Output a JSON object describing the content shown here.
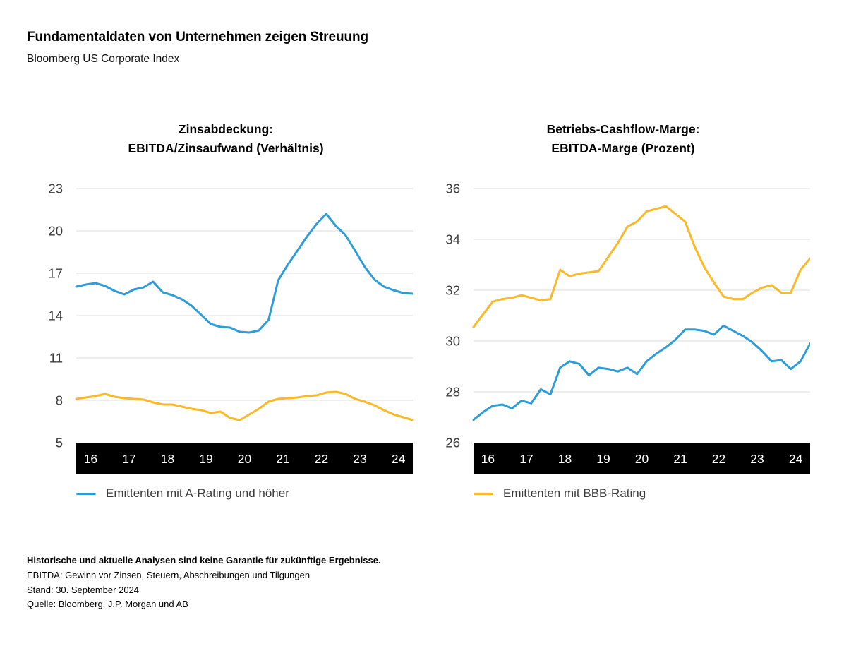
{
  "header": {
    "title": "Fundamentaldaten von Unternehmen zeigen Streuung",
    "subtitle": "Bloomberg US Corporate Index"
  },
  "colors": {
    "a_rating": "#2E9CD6",
    "bbb_rating": "#FCB827",
    "gridline": "#E4E4E4",
    "label_text": "#3C3C3C",
    "axis_band": "#000000",
    "axis_band_text": "#FFFFFF"
  },
  "chart_data": [
    {
      "type": "line",
      "title_line1": "Zinsabdeckung:",
      "title_line2": "EBITDA/Zinsaufwand (Verhältnis)",
      "ylim": [
        5,
        23
      ],
      "y_ticks": [
        23,
        20,
        17,
        14,
        11,
        8,
        5
      ],
      "x_ticks": [
        "16",
        "17",
        "18",
        "19",
        "20",
        "21",
        "22",
        "23",
        "24"
      ],
      "grid": "horizontal",
      "legend": "Emittenten mit A-Rating und höher",
      "legend_color": "#2E9CD6",
      "legend_position": "bottom-left",
      "series": [
        {
          "id": "bbb-rating",
          "name": "Emittenten mit BBB-Rating",
          "color": "#FCB827",
          "values": [
            8.1,
            8.2,
            8.3,
            8.45,
            8.25,
            8.15,
            8.1,
            8.05,
            7.85,
            7.7,
            7.7,
            7.55,
            7.4,
            7.3,
            7.1,
            7.2,
            6.75,
            6.6,
            7.0,
            7.4,
            7.9,
            8.1,
            8.15,
            8.2,
            8.3,
            8.35,
            8.55,
            8.6,
            8.45,
            8.1,
            7.9,
            7.65,
            7.3,
            7.0,
            6.8,
            6.6
          ]
        },
        {
          "id": "a-rating",
          "name": "Emittenten mit A-Rating und höher",
          "color": "#2E9CD6",
          "values": [
            16.05,
            16.2,
            16.3,
            16.1,
            15.75,
            15.5,
            15.85,
            16.0,
            16.4,
            15.65,
            15.45,
            15.15,
            14.7,
            14.05,
            13.4,
            13.2,
            13.15,
            12.85,
            12.8,
            12.95,
            13.7,
            16.5,
            17.6,
            18.6,
            19.6,
            20.5,
            21.2,
            20.35,
            19.7,
            18.6,
            17.45,
            16.55,
            16.05,
            15.8,
            15.6,
            15.55
          ]
        }
      ]
    },
    {
      "type": "line",
      "title_line1": "Betriebs-Cashflow-Marge:",
      "title_line2": "EBITDA-Marge (Prozent)",
      "ylim": [
        26,
        36
      ],
      "y_ticks": [
        36,
        34,
        32,
        30,
        28,
        26
      ],
      "x_ticks": [
        "16",
        "17",
        "18",
        "19",
        "20",
        "21",
        "22",
        "23",
        "24"
      ],
      "grid": "horizontal",
      "legend": "Emittenten mit BBB-Rating",
      "legend_color": "#FCB827",
      "legend_position": "bottom-left",
      "series": [
        {
          "id": "bbb-rating",
          "name": "Emittenten mit BBB-Rating",
          "color": "#FCB827",
          "values": [
            30.55,
            31.05,
            31.55,
            31.65,
            31.7,
            31.8,
            31.7,
            31.6,
            31.65,
            32.8,
            32.55,
            32.65,
            32.7,
            32.75,
            33.3,
            33.85,
            34.5,
            34.7,
            35.1,
            35.2,
            35.3,
            35.0,
            34.7,
            33.7,
            32.9,
            32.3,
            31.75,
            31.65,
            31.65,
            31.9,
            32.1,
            32.2,
            31.9,
            31.9,
            32.8,
            33.25
          ]
        },
        {
          "id": "a-rating",
          "name": "Emittenten mit A-Rating und höher",
          "color": "#2E9CD6",
          "values": [
            26.9,
            27.2,
            27.45,
            27.5,
            27.35,
            27.65,
            27.55,
            28.1,
            27.9,
            28.95,
            29.2,
            29.1,
            28.65,
            28.95,
            28.9,
            28.8,
            28.95,
            28.7,
            29.2,
            29.5,
            29.75,
            30.05,
            30.45,
            30.45,
            30.4,
            30.25,
            30.6,
            30.4,
            30.2,
            29.95,
            29.6,
            29.2,
            29.25,
            28.9,
            29.2,
            29.9
          ]
        }
      ]
    }
  ],
  "footer": {
    "disclaimer": "Historische und aktuelle Analysen sind keine Garantie für zukünftige Ergebnisse.",
    "definition": "EBITDA: Gewinn vor Zinsen, Steuern, Abschreibungen und Tilgungen",
    "as_of": "Stand: 30. September 2024",
    "source": "Quelle: Bloomberg, J.P. Morgan und AB"
  }
}
